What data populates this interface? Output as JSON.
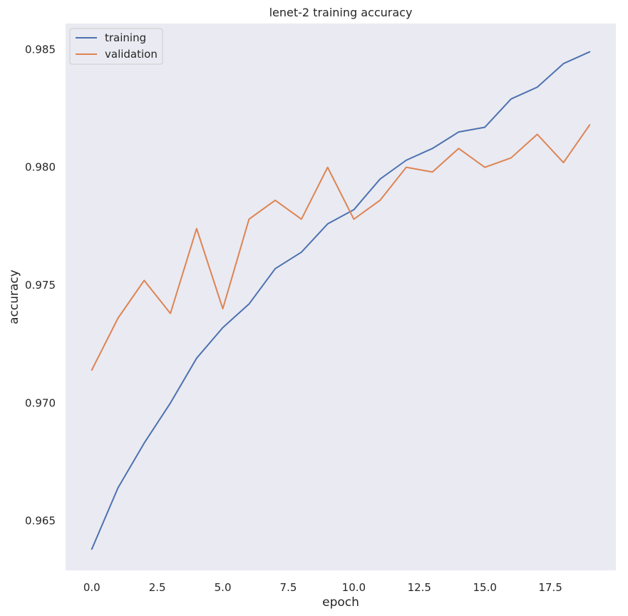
{
  "chart_data": {
    "type": "line",
    "title": "lenet-2 training accuracy",
    "xlabel": "epoch",
    "ylabel": "accuracy",
    "xlim": [
      -1,
      20
    ],
    "ylim": [
      0.9629,
      0.9861
    ],
    "xticks": [
      0.0,
      2.5,
      5.0,
      7.5,
      10.0,
      12.5,
      15.0,
      17.5
    ],
    "xtick_labels": [
      "0.0",
      "2.5",
      "5.0",
      "7.5",
      "10.0",
      "12.5",
      "15.0",
      "17.5"
    ],
    "yticks": [
      0.965,
      0.97,
      0.975,
      0.98,
      0.985
    ],
    "ytick_labels": [
      "0.965",
      "0.970",
      "0.975",
      "0.980",
      "0.985"
    ],
    "grid": false,
    "legend_position": "top-left",
    "x": [
      0,
      1,
      2,
      3,
      4,
      5,
      6,
      7,
      8,
      9,
      10,
      11,
      12,
      13,
      14,
      15,
      16,
      17,
      18,
      19
    ],
    "series": [
      {
        "name": "training",
        "color": "#4c72b0",
        "values": [
          0.9638,
          0.9664,
          0.9683,
          0.97,
          0.9719,
          0.9732,
          0.9742,
          0.9757,
          0.9764,
          0.9776,
          0.9782,
          0.9795,
          0.9803,
          0.9808,
          0.9815,
          0.9817,
          0.9829,
          0.9834,
          0.9844,
          0.9849
        ]
      },
      {
        "name": "validation",
        "color": "#dd8452",
        "values": [
          0.9714,
          0.9736,
          0.9752,
          0.9738,
          0.9774,
          0.974,
          0.9778,
          0.9786,
          0.9778,
          0.98,
          0.9778,
          0.9786,
          0.98,
          0.9798,
          0.9808,
          0.98,
          0.9804,
          0.9814,
          0.9802,
          0.9818
        ]
      }
    ]
  }
}
